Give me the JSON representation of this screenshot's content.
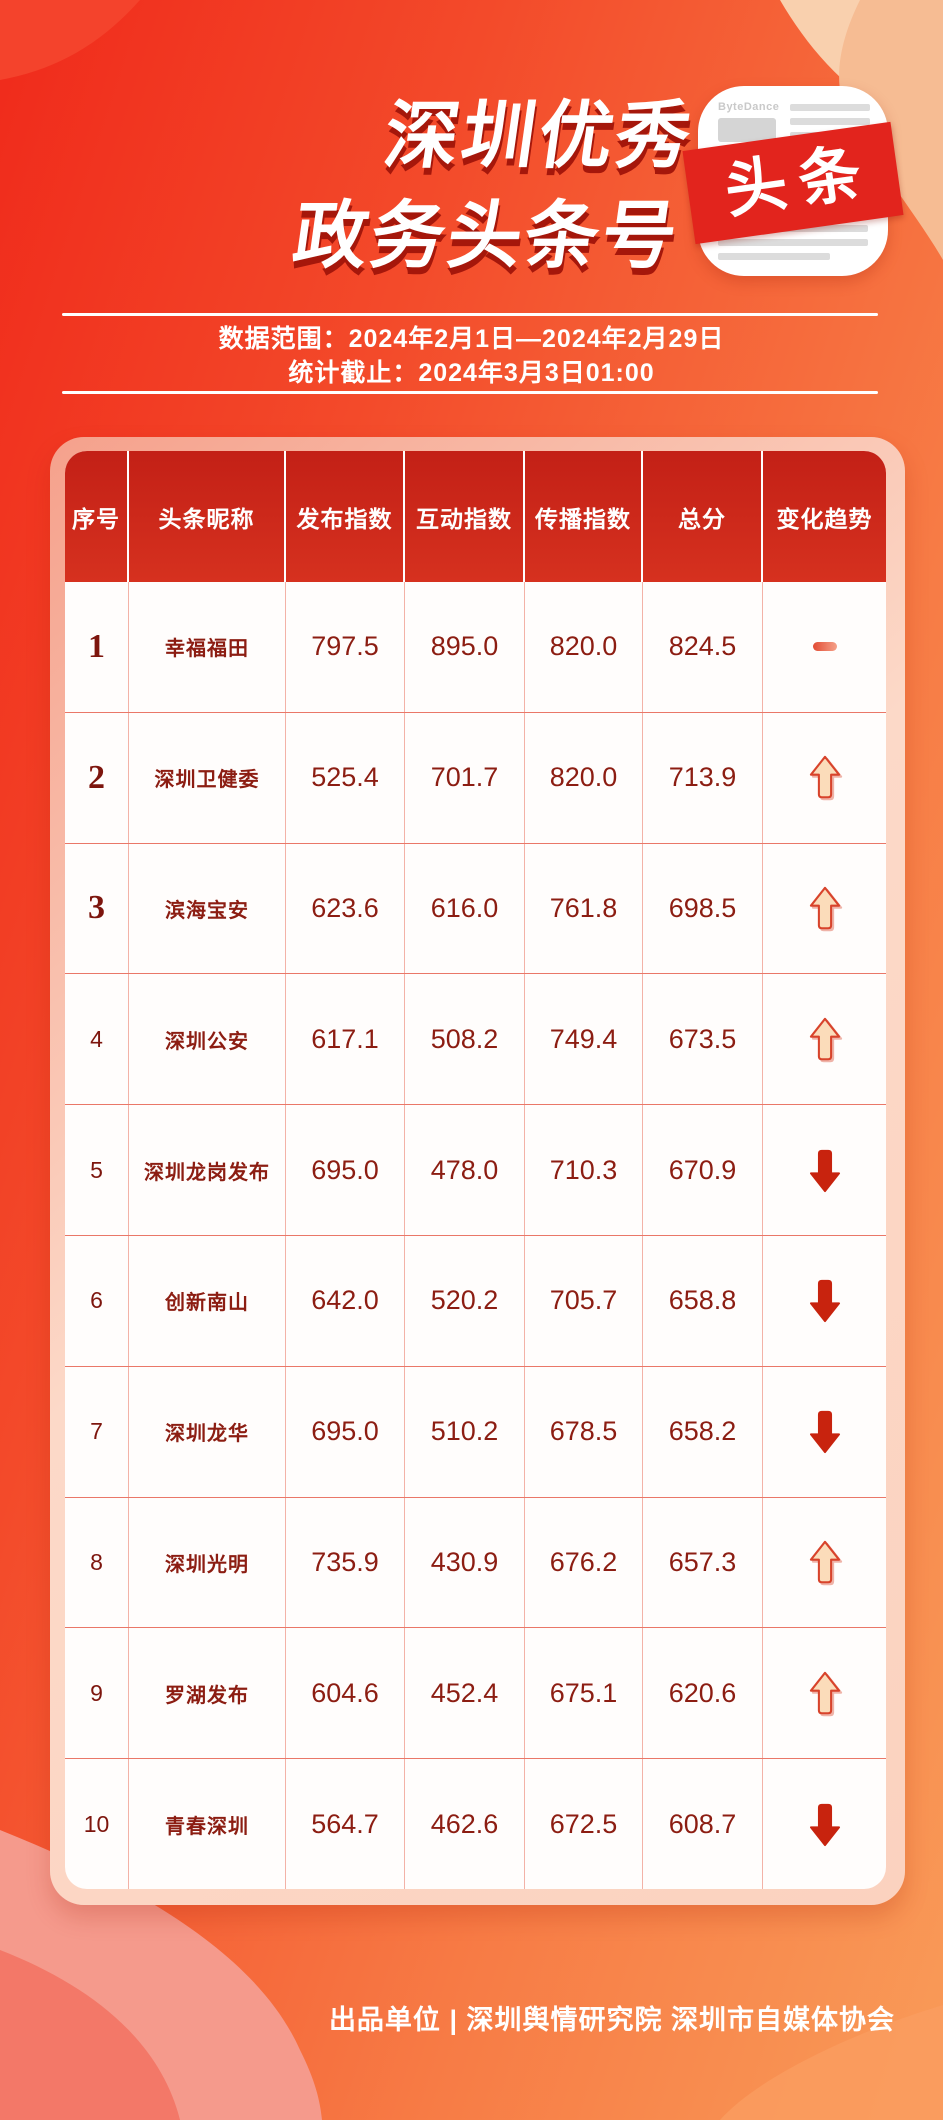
{
  "title": {
    "line1": "深圳优秀",
    "line2": "政务头条号"
  },
  "logo": {
    "brand_text": "ByteDance",
    "banner_text": "头条"
  },
  "meta": {
    "data_range": "数据范围：2024年2月1日—2024年2月29日",
    "stat_deadline": "统计截止：2024年3月3日01:00"
  },
  "footer": {
    "credit": "出品单位 | 深圳舆情研究院 深圳市自媒体协会"
  },
  "chart_data": {
    "type": "table",
    "title": "深圳优秀政务头条号",
    "columns": [
      "序号",
      "头条昵称",
      "发布指数",
      "互动指数",
      "传播指数",
      "总分",
      "变化趋势"
    ],
    "rows": [
      {
        "rank": "1",
        "name": "幸福福田",
        "publish": "797.5",
        "interact": "895.0",
        "spread": "820.0",
        "total": "824.5",
        "trend": "flat"
      },
      {
        "rank": "2",
        "name": "深圳卫健委",
        "publish": "525.4",
        "interact": "701.7",
        "spread": "820.0",
        "total": "713.9",
        "trend": "up"
      },
      {
        "rank": "3",
        "name": "滨海宝安",
        "publish": "623.6",
        "interact": "616.0",
        "spread": "761.8",
        "total": "698.5",
        "trend": "up"
      },
      {
        "rank": "4",
        "name": "深圳公安",
        "publish": "617.1",
        "interact": "508.2",
        "spread": "749.4",
        "total": "673.5",
        "trend": "up"
      },
      {
        "rank": "5",
        "name": "深圳龙岗发布",
        "publish": "695.0",
        "interact": "478.0",
        "spread": "710.3",
        "total": "670.9",
        "trend": "down"
      },
      {
        "rank": "6",
        "name": "创新南山",
        "publish": "642.0",
        "interact": "520.2",
        "spread": "705.7",
        "total": "658.8",
        "trend": "down"
      },
      {
        "rank": "7",
        "name": "深圳龙华",
        "publish": "695.0",
        "interact": "510.2",
        "spread": "678.5",
        "total": "658.2",
        "trend": "down"
      },
      {
        "rank": "8",
        "name": "深圳光明",
        "publish": "735.9",
        "interact": "430.9",
        "spread": "676.2",
        "total": "657.3",
        "trend": "up"
      },
      {
        "rank": "9",
        "name": "罗湖发布",
        "publish": "604.6",
        "interact": "452.4",
        "spread": "675.1",
        "total": "620.6",
        "trend": "up"
      },
      {
        "rank": "10",
        "name": "青春深圳",
        "publish": "564.7",
        "interact": "462.6",
        "spread": "672.5",
        "total": "608.7",
        "trend": "down"
      }
    ]
  },
  "colors": {
    "background_left": "#F02A1B",
    "background_right": "#F99B58",
    "header_red": "#CE2619",
    "table_text": "#8C1D12",
    "up_arrow_fill": "#FBDCBA",
    "up_arrow_stroke": "#D8432B",
    "down_arrow": "#C8230E",
    "trend_flat_dash": "#E8543C",
    "logo_banner_red": "#E2241D"
  }
}
